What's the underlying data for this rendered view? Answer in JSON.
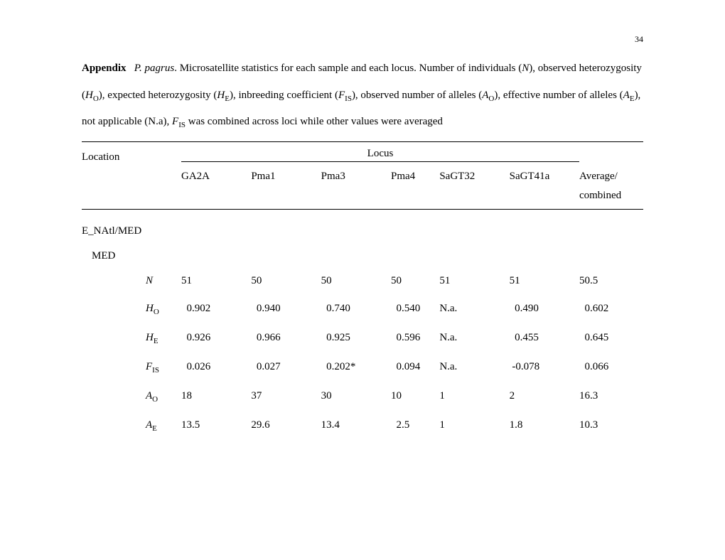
{
  "page_number": "34",
  "description": {
    "appendix": "Appendix",
    "species": "P. pagrus",
    "text1": ".  Microsatellite statistics for each sample and each locus. Number of individuals (",
    "N": "N",
    "text2": "), observed heterozygosity (",
    "Ho": "H",
    "Ho_sub": "O",
    "text3": "), expected heterozygosity (",
    "He": "H",
    "He_sub": "E",
    "text4": "), inbreeding coefficient (",
    "Fis": "F",
    "Fis_sub": "IS",
    "text5": "), observed number of alleles (",
    "Ao": "A",
    "Ao_sub": "O",
    "text6": "), effective number of alleles (",
    "Ae": "A",
    "Ae_sub": "E",
    "text7": "), not applicable (N.a), ",
    "Fis2": "F",
    "Fis2_sub": "IS",
    "text8": " was combined across loci while other values were averaged"
  },
  "headers": {
    "location": "Location",
    "locus": "Locus",
    "col1": "GA2A",
    "col2_prefix": "Pma",
    "col2_num": "1",
    "col3_prefix": "Pma",
    "col3_num": "3",
    "col4_prefix": "Pma",
    "col4_num": "4",
    "col5_prefix": "Sa",
    "col5_suffix": "GT32",
    "col6_prefix": "Sa",
    "col6_suffix": "GT41a",
    "average": "Average/",
    "combined": "combined"
  },
  "section": "E_NAtl/MED",
  "subsection": "MED",
  "rows": [
    {
      "label": "N",
      "sub": "",
      "values": [
        "51",
        "50",
        "50",
        "50",
        "51",
        "51",
        "50.5"
      ]
    },
    {
      "label": "H",
      "sub": "O",
      "values": [
        "  0.902",
        "  0.940",
        "  0.740",
        "  0.540",
        "N.a.",
        "  0.490",
        "  0.602"
      ]
    },
    {
      "label": "H",
      "sub": "E",
      "values": [
        "  0.926",
        "  0.966",
        "  0.925",
        "  0.596",
        "N.a.",
        "  0.455",
        "  0.645"
      ]
    },
    {
      "label": "F",
      "sub": "IS",
      "values": [
        "  0.026",
        "  0.027",
        "  0.202*",
        "  0.094",
        "N.a.",
        " -0.078",
        "  0.066"
      ]
    },
    {
      "label": "A",
      "sub": "O",
      "values": [
        "18",
        "37",
        "30",
        "10",
        "1",
        "2",
        "16.3"
      ]
    },
    {
      "label": "A",
      "sub": "E",
      "values": [
        "13.5",
        "29.6",
        "13.4",
        "  2.5",
        "1",
        "1.8",
        "10.3"
      ]
    }
  ]
}
